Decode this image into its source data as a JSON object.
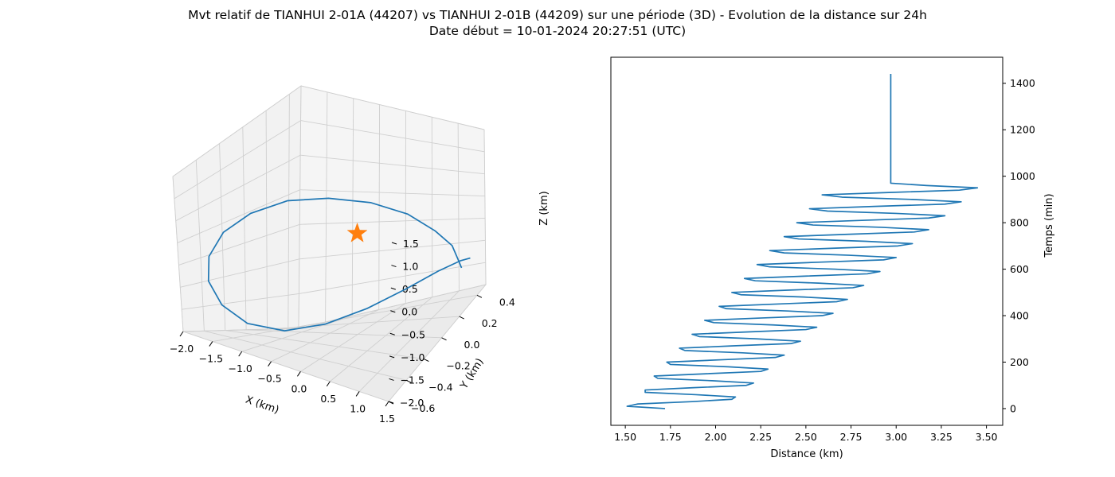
{
  "figure": {
    "title_line1": "Mvt relatif de TIANHUI 2-01A (44207) vs TIANHUI 2-01B (44209) sur une période (3D) - Evolution de la distance sur 24h",
    "title_line2": "Date début = 10-01-2024 20:27:51 (UTC)"
  },
  "colors": {
    "series": "#1f77b4",
    "marker": "#ff7f0e",
    "pane": "#f2f2f2",
    "grid": "#cfcfcf"
  },
  "chart_data": [
    {
      "type": "line",
      "projection": "3d",
      "xlabel": "X (km)",
      "ylabel": "Y (km)",
      "zlabel": "Z (km)",
      "xticks": [
        "−2.0",
        "−1.5",
        "−1.0",
        "−0.5",
        "0.0",
        "0.5",
        "1.0",
        "1.5"
      ],
      "yticks": [
        "−0.6",
        "−0.4",
        "−0.2",
        "0.0",
        "0.2",
        "0.4"
      ],
      "zticks": [
        "−2.0",
        "−1.5",
        "−1.0",
        "−0.5",
        "0.0",
        "0.5",
        "1.0",
        "1.5"
      ],
      "xlim": [
        -2.0,
        1.5
      ],
      "ylim": [
        -0.6,
        0.5
      ],
      "zlim": [
        -2.0,
        1.5
      ],
      "grid": true,
      "series": [
        {
          "marker": "line",
          "x": [
            1.3,
            1.42,
            1.45,
            1.35,
            1.05,
            0.6,
            0.05,
            -0.5,
            -1.05,
            -1.5,
            -1.82,
            -1.98,
            -1.95,
            -1.75,
            -1.35,
            -0.85,
            -0.3,
            0.25,
            0.75,
            1.15,
            1.38
          ],
          "y": [
            0.35,
            0.25,
            0.15,
            0.02,
            -0.1,
            -0.22,
            -0.32,
            -0.4,
            -0.44,
            -0.45,
            -0.42,
            -0.35,
            -0.25,
            -0.12,
            0.02,
            0.15,
            0.27,
            0.36,
            0.42,
            0.43,
            0.4
          ],
          "z": [
            -1.25,
            -0.9,
            -0.3,
            0.3,
            0.85,
            1.2,
            1.3,
            1.2,
            0.8,
            0.25,
            -0.4,
            -1.0,
            -1.5,
            -1.85,
            -2.0,
            -1.95,
            -1.8,
            -1.6,
            -1.4,
            -1.25,
            -1.15
          ]
        },
        {
          "marker": "star",
          "x": [
            0.0
          ],
          "y": [
            0.0
          ],
          "z": [
            0.0
          ]
        }
      ]
    },
    {
      "type": "line",
      "xlabel": "Distance (km)",
      "ylabel": "Temps (min)",
      "xlim": [
        1.42,
        3.59
      ],
      "ylim": [
        -72,
        1512
      ],
      "xticks": [
        "1.50",
        "1.75",
        "2.00",
        "2.25",
        "2.50",
        "2.75",
        "3.00",
        "3.25",
        "3.50"
      ],
      "yticks": [
        "0",
        "200",
        "400",
        "600",
        "800",
        "1000",
        "1200",
        "1400"
      ],
      "y_axis_side": "right",
      "grid": false,
      "series": [
        {
          "t_min": [
            0,
            10,
            20,
            30,
            40,
            50,
            60,
            70,
            80,
            90,
            100,
            110,
            120,
            130,
            140,
            150,
            160,
            170,
            180,
            190,
            200,
            210,
            220,
            230,
            240,
            250,
            260,
            270,
            280,
            290,
            300,
            310,
            320,
            330,
            340,
            350,
            360,
            370,
            380,
            390,
            400,
            410,
            420,
            430,
            440,
            450,
            460,
            470,
            480,
            490,
            500,
            510,
            520,
            530,
            540,
            550,
            560,
            570,
            580,
            590,
            600,
            610,
            620,
            630,
            640,
            650,
            660,
            670,
            680,
            690,
            700,
            710,
            720,
            730,
            740,
            750,
            760,
            770,
            780,
            790,
            800,
            810,
            820,
            830,
            840,
            850,
            860,
            870,
            880,
            890,
            900,
            910,
            920,
            930,
            940,
            950,
            960,
            970,
            980,
            990,
            1000,
            1010,
            1020,
            1030,
            1040,
            1050,
            1060,
            1070,
            1080,
            1090,
            1100,
            1110,
            1120,
            1130,
            1140,
            1150,
            1160,
            1170,
            1180,
            1190,
            1200,
            1210,
            1220,
            1230,
            1240,
            1250,
            1260,
            1270,
            1280,
            1290,
            1300,
            1310,
            1320,
            1330,
            1340,
            1350,
            1360,
            1370,
            1380,
            1390,
            1400,
            1410,
            1420,
            1430,
            1440
          ],
          "distance_km": [
            1.72,
            1.51,
            1.57,
            1.87,
            2.09,
            2.11,
            1.89,
            1.61,
            1.61,
            1.88,
            2.17,
            2.21,
            1.98,
            1.68,
            1.66,
            1.95,
            2.25,
            2.29,
            2.07,
            1.75,
            1.73,
            2.03,
            2.33,
            2.38,
            2.15,
            1.83,
            1.8,
            2.1,
            2.42,
            2.47,
            2.23,
            1.91,
            1.87,
            2.18,
            2.5,
            2.56,
            2.32,
            1.99,
            1.94,
            2.26,
            2.59,
            2.65,
            2.4,
            2.06,
            2.02,
            2.34,
            2.67,
            2.73,
            2.49,
            2.14,
            2.09,
            2.41,
            2.76,
            2.82,
            2.57,
            2.22,
            2.16,
            2.49,
            2.84,
            2.91,
            2.66,
            2.3,
            2.23,
            2.57,
            2.93,
            3.0,
            2.74,
            2.38,
            2.3,
            2.65,
            3.01,
            3.09,
            2.83,
            2.46,
            2.38,
            2.73,
            3.1,
            3.18,
            2.92,
            2.54,
            2.45,
            2.81,
            3.18,
            3.27,
            3.0,
            2.62,
            2.52,
            2.88,
            3.27,
            3.36,
            3.09,
            2.7,
            2.59,
            2.96,
            3.35,
            3.45,
            3.17,
            2.97,
            2.97,
            2.97,
            2.97,
            2.97,
            2.97,
            2.97,
            2.97,
            2.97,
            2.97,
            2.97,
            2.97,
            2.97,
            2.97,
            2.97,
            2.97,
            2.97,
            2.97,
            2.97,
            2.97,
            2.97,
            2.97,
            2.97,
            2.97,
            2.97,
            2.97,
            2.97,
            2.97,
            2.97,
            2.97,
            2.97,
            2.97,
            2.97,
            2.97,
            2.97,
            2.97,
            2.97,
            2.97,
            2.97,
            2.97,
            2.97,
            2.97,
            2.97,
            2.97,
            2.97,
            2.97,
            2.97,
            2.97
          ]
        }
      ]
    }
  ]
}
